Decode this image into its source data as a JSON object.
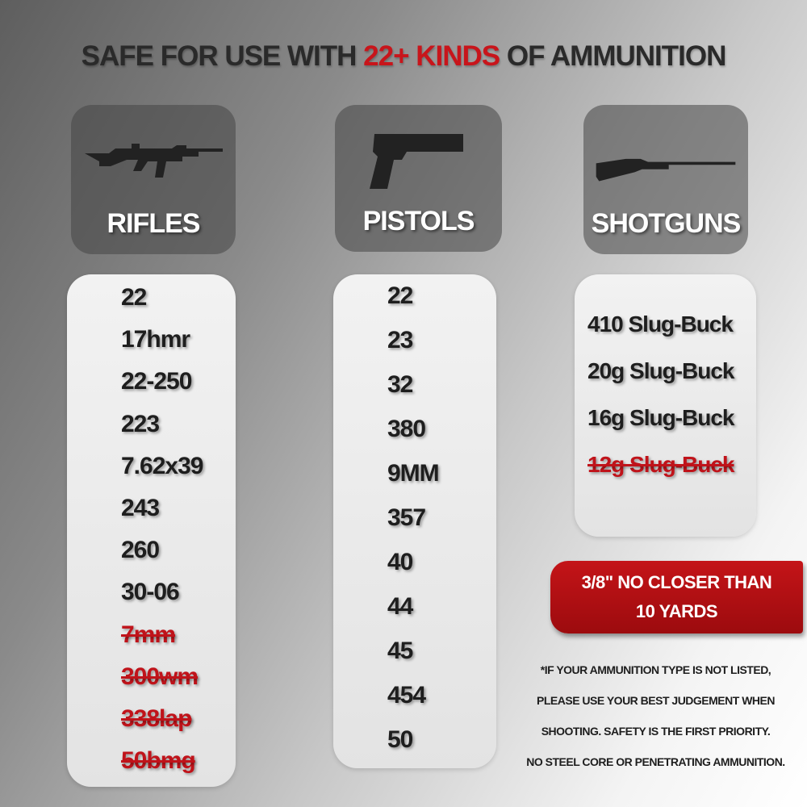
{
  "title": {
    "part1": "SAFE FOR USE WITH ",
    "highlight": "22+ KINDS",
    "part2": " OF AMMUNITION"
  },
  "colors": {
    "accent": "#c8151b",
    "text": "#1e1e1e"
  },
  "categories": [
    {
      "label": "RIFLES",
      "icon": "rifle-icon"
    },
    {
      "label": "PISTOLS",
      "icon": "pistol-icon"
    },
    {
      "label": "SHOTGUNS",
      "icon": "shotgun-icon"
    }
  ],
  "rifles": [
    {
      "text": "22",
      "excluded": false
    },
    {
      "text": "17hmr",
      "excluded": false
    },
    {
      "text": "22-250",
      "excluded": false
    },
    {
      "text": "223",
      "excluded": false
    },
    {
      "text": "7.62x39",
      "excluded": false
    },
    {
      "text": "243",
      "excluded": false
    },
    {
      "text": "260",
      "excluded": false
    },
    {
      "text": "30-06",
      "excluded": false
    },
    {
      "text": "7mm",
      "excluded": true
    },
    {
      "text": "300wm",
      "excluded": true
    },
    {
      "text": "338lap",
      "excluded": true
    },
    {
      "text": "50bmg",
      "excluded": true
    }
  ],
  "pistols": [
    {
      "text": "22",
      "excluded": false
    },
    {
      "text": "23",
      "excluded": false
    },
    {
      "text": "32",
      "excluded": false
    },
    {
      "text": "380",
      "excluded": false
    },
    {
      "text": "9MM",
      "excluded": false
    },
    {
      "text": "357",
      "excluded": false
    },
    {
      "text": "40",
      "excluded": false
    },
    {
      "text": "44",
      "excluded": false
    },
    {
      "text": "45",
      "excluded": false
    },
    {
      "text": "454",
      "excluded": false
    },
    {
      "text": "50",
      "excluded": false
    }
  ],
  "shotguns": [
    {
      "text": "410 Slug-Buck",
      "excluded": false
    },
    {
      "text": "20g Slug-Buck",
      "excluded": false
    },
    {
      "text": "16g Slug-Buck",
      "excluded": false
    },
    {
      "text": "12g Slug-Buck",
      "excluded": true
    }
  ],
  "banner": {
    "line1": "3/8\" NO CLOSER THAN",
    "line2": "10 YARDS"
  },
  "note": [
    "*IF YOUR AMMUNITION TYPE IS NOT LISTED,",
    "PLEASE USE YOUR BEST JUDGEMENT WHEN",
    "SHOOTING. SAFETY IS THE FIRST PRIORITY.",
    "NO STEEL CORE OR PENETRATING AMMUNITION."
  ]
}
